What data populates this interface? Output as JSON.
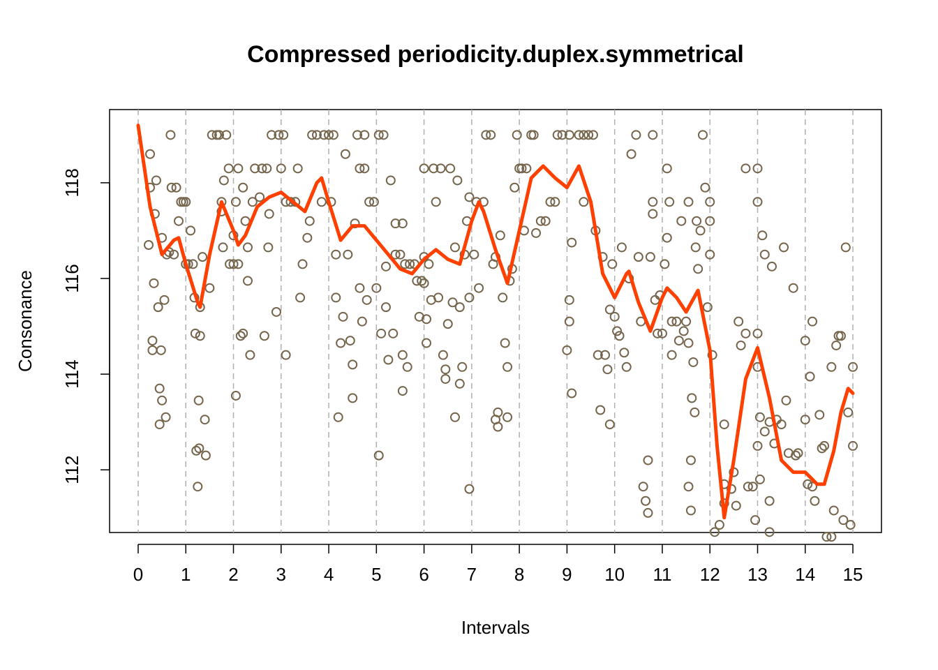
{
  "chart_data": {
    "type": "scatter",
    "title": "Compressed periodicity.duplex.symmetrical",
    "x_label": "Intervals",
    "y_label": "Consonance",
    "xlim": [
      -0.6,
      15.6
    ],
    "ylim": [
      110.69,
      119.53
    ],
    "xticks": [
      0,
      1,
      2,
      3,
      4,
      5,
      6,
      7,
      8,
      9,
      10,
      11,
      12,
      13,
      14,
      15
    ],
    "yticks": [
      112,
      114,
      116,
      118
    ],
    "grid": "x",
    "series": [
      {
        "type": "scatter",
        "color": "#75654d",
        "x": [
          0.25,
          0.25,
          0.22,
          0.3,
          0.3,
          0.33,
          0.35,
          0.38,
          0.42,
          0.45,
          0.45,
          0.5,
          0.48,
          0.5,
          0.55,
          0.58,
          0.6,
          0.65,
          0.68,
          0.7,
          0.75,
          0.8,
          0.85,
          0.9,
          0.95,
          1.0,
          1.0,
          1.05,
          1.1,
          1.15,
          1.18,
          1.2,
          1.22,
          1.25,
          1.27,
          1.28,
          1.3,
          1.3,
          1.35,
          1.4,
          1.42,
          1.5,
          1.55,
          1.65,
          1.7,
          1.75,
          1.75,
          1.78,
          1.8,
          1.85,
          1.9,
          1.92,
          2.0,
          2.0,
          2.05,
          2.05,
          2.1,
          2.1,
          2.15,
          2.2,
          2.2,
          2.25,
          2.3,
          2.3,
          2.35,
          2.4,
          2.45,
          2.55,
          2.6,
          2.65,
          2.7,
          2.73,
          2.75,
          2.8,
          2.9,
          2.95,
          3.0,
          3.05,
          3.1,
          3.1,
          3.2,
          3.3,
          3.35,
          3.4,
          3.45,
          3.55,
          3.6,
          3.65,
          3.75,
          3.85,
          3.9,
          4.0,
          4.05,
          4.1,
          4.15,
          4.15,
          4.2,
          4.25,
          4.3,
          4.35,
          4.4,
          4.45,
          4.5,
          4.5,
          4.55,
          4.6,
          4.65,
          4.65,
          4.7,
          4.75,
          4.75,
          4.8,
          4.85,
          4.95,
          5.0,
          5.05,
          5.1,
          5.05,
          5.15,
          5.2,
          5.2,
          5.25,
          5.3,
          5.35,
          5.4,
          5.4,
          5.5,
          5.55,
          5.55,
          5.55,
          5.6,
          5.65,
          5.7,
          5.8,
          5.85,
          5.9,
          5.95,
          6.0,
          6.0,
          6.0,
          6.05,
          6.05,
          6.1,
          6.15,
          6.2,
          6.25,
          6.3,
          6.35,
          6.4,
          6.45,
          6.45,
          6.5,
          6.55,
          6.6,
          6.65,
          6.65,
          6.7,
          6.75,
          6.75,
          6.8,
          6.85,
          6.9,
          6.95,
          6.95,
          6.95,
          7.05,
          7.1,
          7.15,
          7.25,
          7.3,
          7.4,
          7.45,
          7.5,
          7.5,
          7.55,
          7.55,
          7.6,
          7.65,
          7.7,
          7.75,
          7.75,
          7.8,
          7.85,
          7.9,
          7.95,
          8.0,
          8.05,
          8.1,
          8.15,
          8.25,
          8.3,
          8.35,
          8.45,
          8.55,
          8.65,
          8.75,
          8.8,
          8.9,
          9.05,
          9.05,
          9.05,
          9.0,
          9.1,
          9.1,
          9.25,
          9.35,
          9.35,
          9.45,
          9.55,
          9.6,
          9.65,
          9.7,
          9.75,
          9.8,
          9.85,
          9.9,
          9.9,
          9.95,
          10.0,
          10.05,
          10.1,
          10.15,
          10.2,
          10.25,
          10.3,
          10.35,
          10.45,
          10.5,
          10.55,
          10.6,
          10.65,
          10.7,
          10.7,
          10.75,
          10.8,
          10.8,
          10.8,
          10.85,
          10.9,
          10.95,
          11.0,
          11.05,
          11.1,
          11.1,
          11.15,
          11.2,
          11.2,
          11.3,
          11.35,
          11.4,
          11.45,
          11.5,
          11.55,
          11.55,
          11.55,
          11.6,
          11.6,
          11.62,
          11.65,
          11.68,
          11.7,
          11.72,
          11.75,
          11.8,
          11.85,
          11.9,
          11.95,
          12.0,
          12.0,
          12.0,
          12.05,
          12.1,
          12.2,
          12.3,
          12.3,
          12.3,
          12.45,
          12.5,
          12.55,
          12.6,
          12.65,
          12.75,
          12.75,
          12.8,
          12.9,
          12.95,
          13.0,
          13.0,
          13.0,
          13.0,
          13.0,
          13.05,
          13.05,
          13.1,
          13.15,
          13.15,
          13.25,
          13.25,
          13.25,
          13.3,
          13.35,
          13.4,
          13.5,
          13.55,
          13.6,
          13.65,
          13.75,
          13.8,
          13.85,
          14.0,
          14.0,
          14.05,
          14.1,
          14.15,
          14.15,
          14.2,
          14.3,
          14.35,
          14.4,
          14.45,
          14.55,
          14.55,
          14.6,
          14.65,
          14.7,
          14.75,
          14.8,
          14.85,
          14.9,
          14.95,
          15.0,
          15.0
        ],
        "values": [
          118.6,
          117.9,
          116.7,
          114.7,
          114.5,
          115.9,
          117.35,
          118.05,
          115.4,
          113.7,
          112.95,
          113.45,
          114.5,
          116.85,
          115.55,
          113.1,
          116.5,
          116.55,
          119,
          117.9,
          116.5,
          117.9,
          117.2,
          117.6,
          117.6,
          117.6,
          116.3,
          116.3,
          117,
          116.3,
          115.6,
          114.85,
          112.4,
          111.65,
          113.45,
          112.45,
          115.4,
          114.8,
          116.45,
          113.05,
          112.3,
          115.8,
          119,
          119,
          119,
          117.6,
          117.4,
          116.65,
          118.05,
          119,
          118.3,
          116.3,
          116.3,
          116.9,
          117.6,
          113.55,
          116.3,
          118.3,
          114.8,
          117.9,
          114.85,
          117.2,
          116.65,
          115.95,
          114.4,
          117.6,
          118.3,
          117.7,
          118.3,
          114.8,
          118.3,
          116.65,
          117.35,
          119,
          115.3,
          119,
          118.3,
          119,
          114.4,
          117.6,
          117.6,
          117.6,
          118.3,
          115.6,
          116.3,
          116.85,
          117.2,
          119,
          119,
          117.6,
          119,
          119,
          117.6,
          119,
          116.5,
          115.6,
          113.1,
          114.65,
          115.2,
          118.6,
          116.5,
          114.7,
          114.2,
          113.5,
          117.15,
          119,
          118.3,
          115.8,
          115.1,
          119,
          118.3,
          115.55,
          117.6,
          117.6,
          115.8,
          119,
          114.85,
          112.3,
          119,
          116.25,
          115.4,
          114.3,
          118.05,
          114.85,
          117.15,
          116.5,
          116.5,
          114.4,
          117.15,
          113.65,
          116.3,
          114.15,
          116.3,
          116.3,
          115.95,
          115.2,
          115.95,
          116.45,
          115.9,
          118.3,
          115.15,
          114.65,
          116.3,
          115.55,
          118.3,
          117.6,
          115.6,
          118.3,
          114.4,
          113.9,
          114.1,
          115.05,
          118.3,
          115.5,
          116.65,
          113.1,
          118.05,
          113.8,
          115.4,
          114.15,
          116.5,
          117.2,
          117.7,
          115.6,
          111.6,
          116.5,
          117.6,
          115.8,
          117.6,
          119,
          119,
          116.3,
          116.45,
          113.05,
          113.2,
          112.9,
          116.9,
          115.6,
          114.65,
          113.1,
          114.15,
          115.95,
          116.2,
          117.9,
          119,
          118.3,
          118.3,
          117,
          118.3,
          119,
          119,
          116.95,
          117.2,
          117.2,
          117.6,
          117.6,
          119,
          119,
          119,
          115.55,
          115.1,
          114.5,
          116.75,
          113.6,
          119,
          119,
          117.6,
          119,
          119,
          117,
          114.4,
          113.25,
          116.45,
          114.4,
          114.1,
          112.95,
          115.35,
          116.3,
          115.2,
          114.9,
          114.8,
          116.65,
          114.45,
          114.15,
          116,
          118.6,
          119,
          116.45,
          115.1,
          111.65,
          111.35,
          111.1,
          112.2,
          116.45,
          117.35,
          117.6,
          119,
          115.55,
          114.85,
          115.65,
          114.85,
          116.3,
          118.3,
          116.85,
          117.6,
          114.4,
          115.1,
          115.1,
          114.7,
          117.2,
          114.9,
          115.1,
          117.6,
          114.65,
          111.65,
          111.15,
          112.2,
          113.5,
          114.25,
          113.2,
          116.65,
          117.2,
          116.2,
          117,
          119,
          117.9,
          115.4,
          117.2,
          117.6,
          116.5,
          114.4,
          110.7,
          110.85,
          111.3,
          111.7,
          112.95,
          111.6,
          111.95,
          111.25,
          115.1,
          114.6,
          118.3,
          114.85,
          111.65,
          111.65,
          110.95,
          118.3,
          117.6,
          114.85,
          114.15,
          112.5,
          111.8,
          113.1,
          116.9,
          116.5,
          112.8,
          113,
          111.35,
          110.7,
          116.25,
          112.55,
          113.05,
          112.95,
          116.65,
          113.45,
          112.35,
          115.8,
          112.3,
          112.35,
          114.7,
          113.05,
          111.7,
          113.95,
          115.1,
          111.65,
          111.35,
          113.15,
          112.45,
          112.5,
          110.6,
          114.15,
          110.6,
          111.15,
          114.6,
          114.8,
          114.8,
          110.95,
          116.65,
          113.2,
          110.85,
          112.5,
          114.15
        ]
      },
      {
        "type": "line",
        "color": "#ff4000",
        "x": [
          0,
          0.25,
          0.5,
          0.75,
          0.85,
          1.0,
          1.25,
          1.3,
          1.5,
          1.75,
          2.0,
          2.1,
          2.25,
          2.5,
          2.75,
          3.0,
          3.25,
          3.5,
          3.75,
          3.85,
          4.0,
          4.25,
          4.5,
          4.75,
          5.0,
          5.25,
          5.5,
          5.75,
          6.0,
          6.25,
          6.5,
          6.75,
          7.0,
          7.15,
          7.25,
          7.5,
          7.75,
          8.0,
          8.25,
          8.5,
          8.75,
          9.0,
          9.25,
          9.5,
          9.75,
          10.0,
          10.25,
          10.3,
          10.5,
          10.75,
          11.0,
          11.1,
          11.3,
          11.5,
          11.75,
          12.0,
          12.15,
          12.3,
          12.5,
          12.75,
          13.0,
          13.25,
          13.5,
          13.75,
          14.0,
          14.25,
          14.4,
          14.6,
          14.75,
          14.9,
          15.0
        ],
        "values": [
          119.2,
          117.5,
          116.5,
          116.8,
          116.85,
          116.3,
          115.5,
          115.4,
          116.5,
          117.6,
          117.0,
          116.7,
          116.9,
          117.5,
          117.7,
          117.8,
          117.6,
          117.4,
          118.0,
          118.1,
          117.6,
          116.8,
          117.1,
          117.1,
          116.8,
          116.5,
          116.2,
          116.1,
          116.4,
          116.6,
          116.4,
          116.3,
          117.2,
          117.6,
          117.4,
          116.6,
          115.9,
          117.0,
          118.1,
          118.35,
          118.1,
          117.9,
          118.35,
          117.6,
          116.1,
          115.6,
          116.1,
          116.15,
          115.5,
          114.9,
          115.6,
          115.8,
          115.6,
          115.3,
          115.75,
          114.5,
          112.5,
          111.0,
          112.2,
          113.9,
          114.55,
          113.5,
          112.2,
          111.95,
          111.95,
          111.7,
          111.7,
          112.4,
          113.2,
          113.7,
          113.6
        ]
      }
    ]
  }
}
